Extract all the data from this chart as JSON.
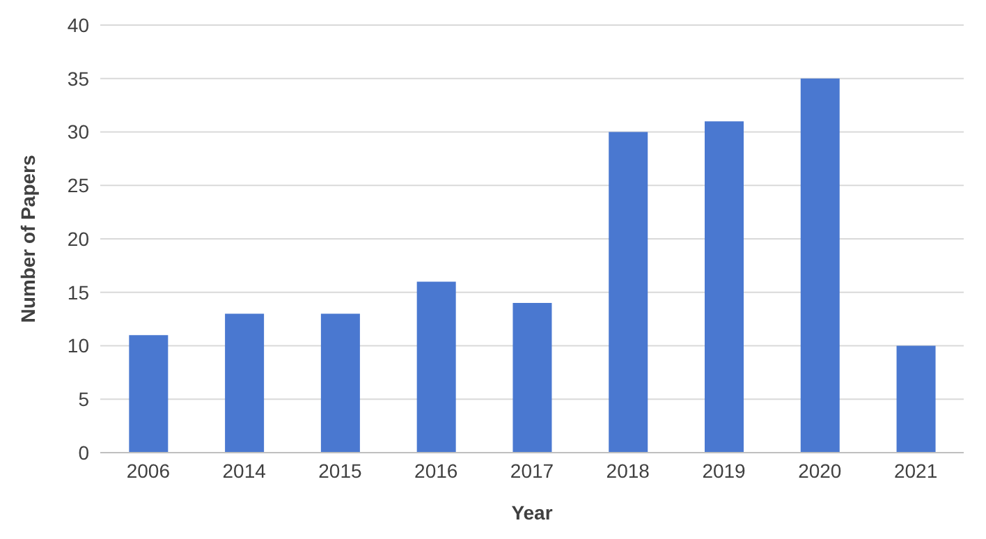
{
  "chart_data": {
    "type": "bar",
    "xlabel": "Year",
    "ylabel": "Number of Papers",
    "categories": [
      "2006",
      "2014",
      "2015",
      "2016",
      "2017",
      "2018",
      "2019",
      "2020",
      "2021"
    ],
    "values": [
      11,
      13,
      13,
      16,
      14,
      30,
      31,
      35,
      10
    ],
    "color": "#4a78d0",
    "ylim": [
      0,
      40
    ],
    "yticks": [
      0,
      5,
      10,
      15,
      20,
      25,
      30,
      35,
      40
    ],
    "grid": "y"
  }
}
